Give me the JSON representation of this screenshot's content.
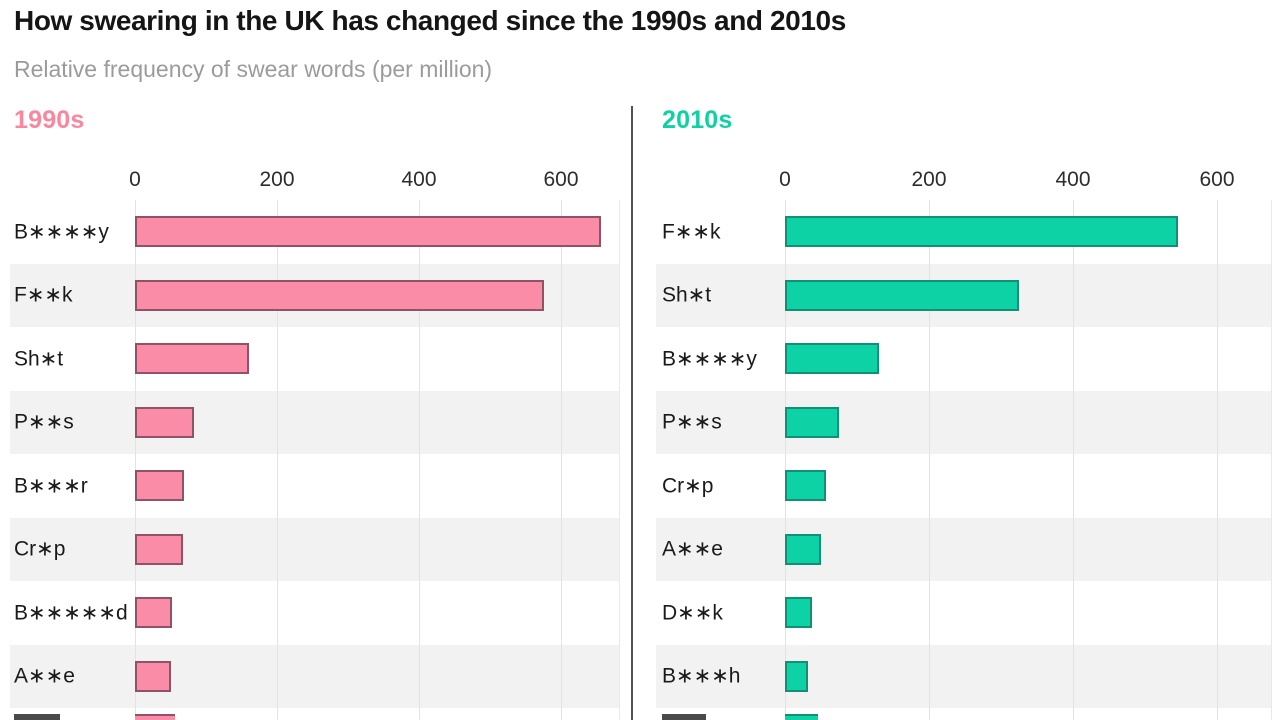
{
  "chart_data": {
    "type": "bar",
    "orientation": "horizontal",
    "title": "How swearing in the UK has changed since the 1990s and 2010s",
    "subtitle": "Relative frequency of swear words (per million)",
    "unit": "per million",
    "axis_ticks": [
      0,
      200,
      400,
      600
    ],
    "xlim": [
      0,
      680
    ],
    "grid": true,
    "row_band_color": "#f2f2f2",
    "panels": [
      {
        "label": "1990s",
        "accent_color": "#F8879F",
        "bar_fill": "#FB8CA7",
        "bar_border": "#8F5266",
        "categories": [
          "B∗∗∗∗y",
          "F∗∗k",
          "Sh∗t",
          "P∗∗s",
          "B∗∗∗r",
          "Cr∗p",
          "B∗∗∗∗∗d",
          "A∗∗e"
        ],
        "values": [
          650,
          570,
          155,
          78,
          63,
          62,
          46,
          45
        ]
      },
      {
        "label": "2010s",
        "accent_color": "#0FD1A4",
        "bar_fill": "#0DD2A6",
        "bar_border": "#128F74",
        "categories": [
          "F∗∗k",
          "Sh∗t",
          "B∗∗∗∗y",
          "P∗∗s",
          "Cr∗p",
          "A∗∗e",
          "D∗∗k",
          "B∗∗∗h"
        ],
        "values": [
          540,
          320,
          125,
          70,
          52,
          45,
          32,
          26
        ]
      }
    ]
  }
}
